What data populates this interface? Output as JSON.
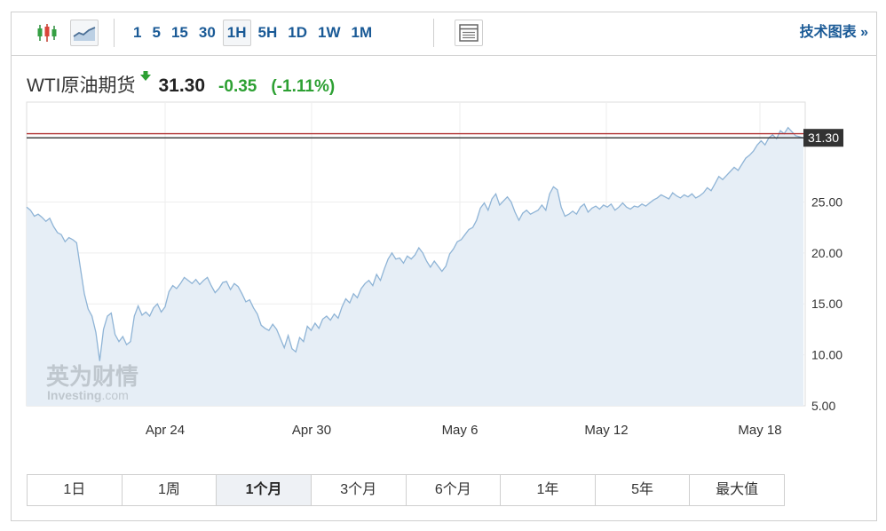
{
  "toolbar": {
    "candle_icon": "candlestick-chart-icon",
    "line_icon": "line-chart-icon",
    "intervals": [
      "1",
      "5",
      "15",
      "30",
      "1H",
      "5H",
      "1D",
      "1W",
      "1M"
    ],
    "active_interval": "1H",
    "layout_icon": "chart-layout-icon",
    "tech_link_label": "技术图表 »"
  },
  "header": {
    "instrument": "WTI原油期货",
    "direction_icon": "down-arrow-icon",
    "price": "31.30",
    "change": "-0.35",
    "change_pct": "(-1.11%)",
    "change_color": "#2da033"
  },
  "watermark": {
    "cn": "英为财情",
    "en_main": "Investing",
    "en_dot": ".com"
  },
  "chart_data": {
    "type": "area",
    "y_ticks": [
      "5.00",
      "10.00",
      "15.00",
      "20.00",
      "25.00"
    ],
    "ylim": [
      5,
      34.8
    ],
    "x_ticks": [
      "Apr 24",
      "Apr 30",
      "May 6",
      "May 12",
      "May 18"
    ],
    "last_price_label": "31.30",
    "reference_lines": [
      31.7,
      31.3
    ],
    "line_color": "#8fb4d6",
    "fill_color": "#e6eef6",
    "series": [
      {
        "values": [
          24.5,
          24.2,
          23.6,
          23.8,
          23.5,
          23.1,
          23.4,
          22.6,
          22.0,
          21.8,
          21.1,
          21.5,
          21.3,
          21.0,
          18.5,
          16.0,
          14.5,
          13.8,
          12.2,
          9.4,
          12.5,
          13.8,
          14.1,
          12.0,
          11.3,
          11.8,
          11.0,
          11.3,
          13.8,
          14.8,
          13.9,
          14.2,
          13.8,
          14.6,
          15.0,
          14.2,
          14.7,
          16.2,
          16.8,
          16.5,
          17.0,
          17.6,
          17.3,
          17.0,
          17.4,
          16.9,
          17.3,
          17.6,
          16.8,
          16.1,
          16.5,
          17.1,
          17.2,
          16.4,
          17.0,
          16.7,
          16.0,
          15.2,
          15.4,
          14.6,
          14.0,
          12.9,
          12.6,
          12.4,
          13.0,
          12.5,
          11.6,
          10.7,
          11.9,
          10.6,
          10.3,
          11.7,
          11.3,
          12.8,
          12.4,
          13.1,
          12.6,
          13.5,
          13.8,
          13.4,
          14.0,
          13.6,
          14.7,
          15.5,
          15.1,
          16.0,
          15.6,
          16.5,
          17.0,
          17.3,
          16.8,
          17.9,
          17.3,
          18.4,
          19.4,
          20.0,
          19.4,
          19.5,
          19.0,
          19.7,
          19.4,
          19.8,
          20.5,
          20.0,
          19.2,
          18.6,
          19.2,
          18.7,
          18.2,
          18.7,
          19.9,
          20.4,
          21.1,
          21.3,
          21.8,
          22.3,
          22.5,
          23.2,
          24.4,
          24.9,
          24.2,
          25.3,
          25.8,
          24.7,
          25.1,
          25.5,
          25.0,
          24.0,
          23.2,
          23.9,
          24.2,
          23.8,
          24.0,
          24.2,
          24.7,
          24.2,
          25.8,
          26.5,
          26.2,
          24.5,
          23.6,
          23.8,
          24.1,
          23.8,
          24.5,
          24.8,
          24.0,
          24.4,
          24.6,
          24.3,
          24.7,
          24.5,
          24.8,
          24.2,
          24.5,
          24.9,
          24.5,
          24.3,
          24.6,
          24.5,
          24.8,
          24.6,
          24.9,
          25.2,
          25.4,
          25.7,
          25.5,
          25.3,
          25.9,
          25.6,
          25.4,
          25.7,
          25.5,
          25.8,
          25.4,
          25.6,
          25.9,
          26.4,
          26.1,
          26.8,
          27.5,
          27.2,
          27.6,
          28.0,
          28.4,
          28.1,
          28.7,
          29.3,
          29.6,
          30.0,
          30.6,
          31.0,
          30.6,
          31.3,
          31.6,
          31.2,
          32.0,
          31.7,
          32.3,
          31.9,
          31.5,
          31.4,
          31.3
        ]
      }
    ]
  }
}
